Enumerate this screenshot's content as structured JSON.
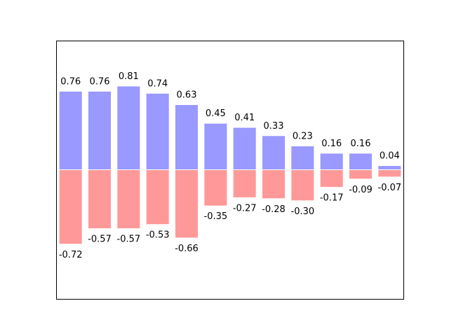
{
  "chart_data": {
    "type": "bar",
    "x": [
      0,
      1,
      2,
      3,
      4,
      5,
      6,
      7,
      8,
      9,
      10,
      11
    ],
    "series": [
      {
        "values": [
          0.76,
          0.76,
          0.81,
          0.74,
          0.63,
          0.45,
          0.41,
          0.33,
          0.23,
          0.16,
          0.16,
          0.04
        ],
        "labels": [
          "0.76",
          "0.76",
          "0.81",
          "0.74",
          "0.63",
          "0.45",
          "0.41",
          "0.33",
          "0.23",
          "0.16",
          "0.16",
          "0.04"
        ],
        "color": "#9999ff"
      },
      {
        "values": [
          -0.72,
          -0.57,
          -0.57,
          -0.53,
          -0.66,
          -0.35,
          -0.27,
          -0.28,
          -0.3,
          -0.17,
          -0.09,
          -0.07
        ],
        "labels": [
          "-0.72",
          "-0.57",
          "-0.57",
          "-0.53",
          "-0.66",
          "-0.35",
          "-0.27",
          "-0.28",
          "-0.30",
          "-0.17",
          "-0.09",
          "-0.07"
        ],
        "color": "#ff9999"
      }
    ],
    "xlim": [
      -0.5,
      11.5
    ],
    "ylim": [
      -1.25,
      1.25
    ],
    "bar_edge_color": "#ffffff",
    "axes_visible": false,
    "grid": false
  }
}
